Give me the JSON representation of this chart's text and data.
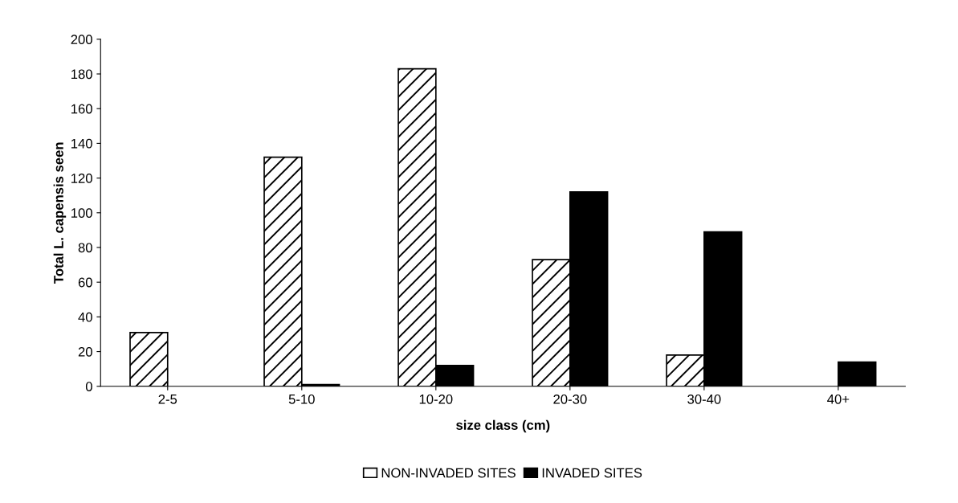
{
  "chart_data": {
    "type": "bar",
    "xlabel": "size class (cm)",
    "ylabel": "Total L. capensis seen",
    "categories": [
      "2-5",
      "5-10",
      "10-20",
      "20-30",
      "30-40",
      "40+"
    ],
    "series": [
      {
        "name": "NON-INVADED SITES",
        "color": "#ffffff",
        "values": [
          31,
          132,
          183,
          73,
          18,
          0
        ]
      },
      {
        "name": "INVADED SITES",
        "color": "#000000",
        "values": [
          0,
          1,
          12,
          112,
          89,
          14
        ]
      }
    ],
    "ylim": [
      0,
      200
    ],
    "yticks": [
      0,
      20,
      40,
      60,
      80,
      100,
      120,
      140,
      160,
      180,
      200
    ],
    "grid": false,
    "legend": "bottom"
  }
}
